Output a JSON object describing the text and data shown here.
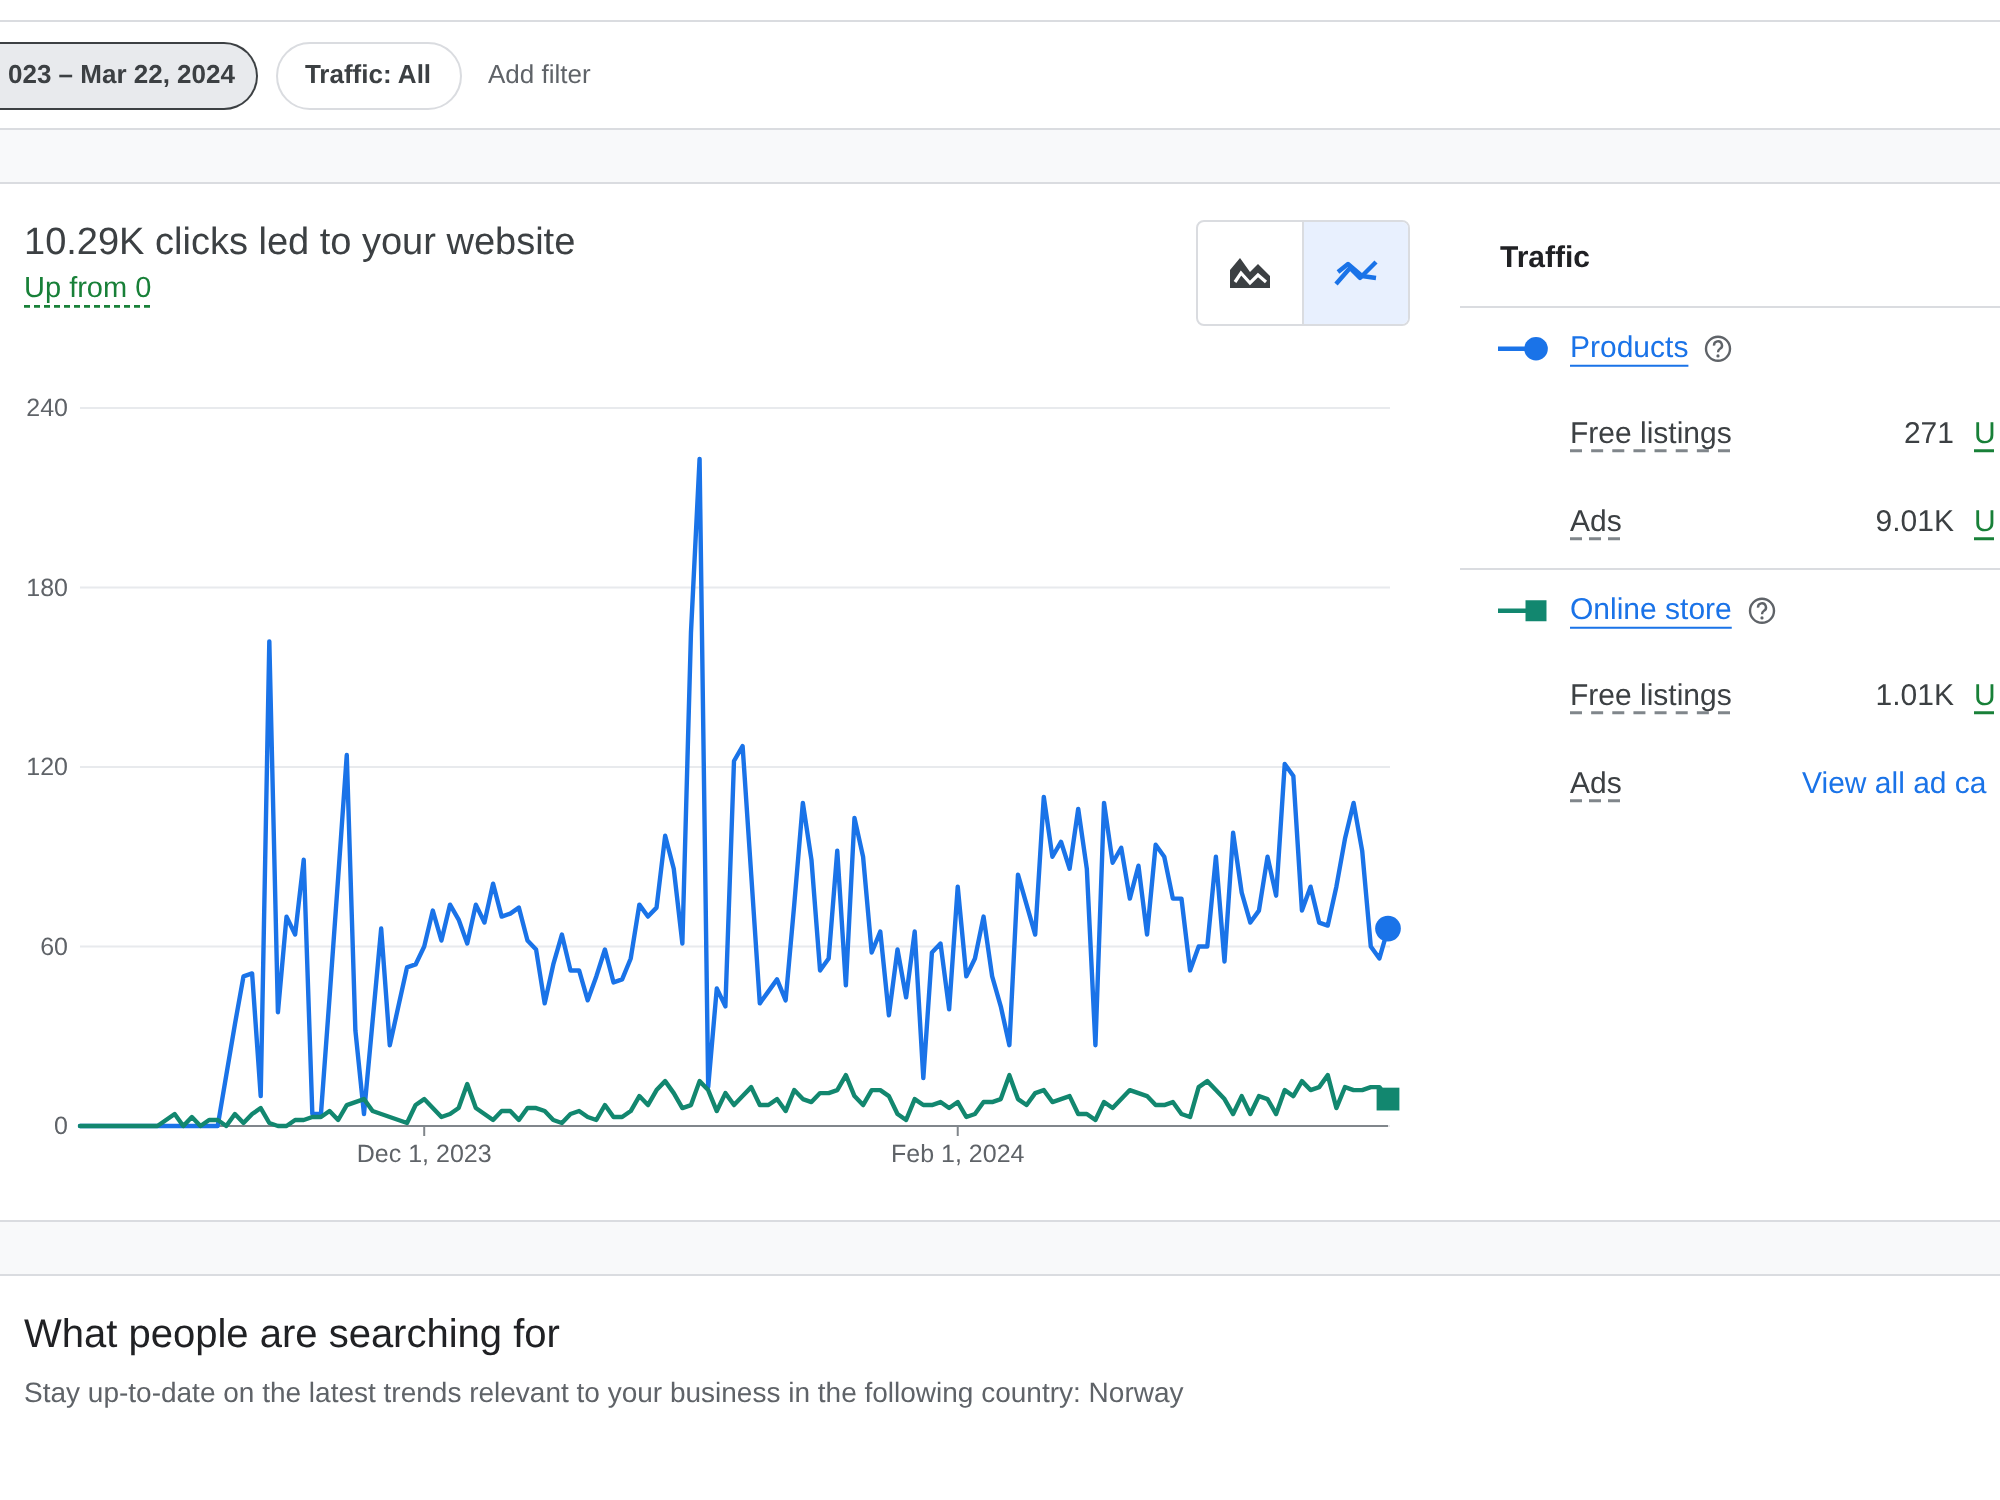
{
  "chart_data": {
    "type": "line",
    "title": "10.29K clicks led to your website",
    "subtitle": "Up from 0",
    "legend_title": "Traffic",
    "legend": "right",
    "grid": "y",
    "xlim": [
      "2023-10-22",
      "2024-03-22"
    ],
    "xticks": [
      {
        "value": "2023-12-01",
        "label": "Dec 1, 2023"
      },
      {
        "value": "2024-02-01",
        "label": "Feb 1, 2024"
      }
    ],
    "ylim": [
      0,
      240
    ],
    "yticks": [
      0,
      60,
      120,
      180,
      240
    ],
    "x": [
      "2023-10-22",
      "2023-10-31",
      "2023-11-01",
      "2023-11-02",
      "2023-11-03",
      "2023-11-04",
      "2023-11-05",
      "2023-11-06",
      "2023-11-07",
      "2023-11-08",
      "2023-11-09",
      "2023-11-10",
      "2023-11-11",
      "2023-11-12",
      "2023-11-13",
      "2023-11-14",
      "2023-11-15",
      "2023-11-16",
      "2023-11-17",
      "2023-11-18",
      "2023-11-19",
      "2023-11-20",
      "2023-11-21",
      "2023-11-22",
      "2023-11-23",
      "2023-11-24",
      "2023-11-25",
      "2023-11-26",
      "2023-11-27",
      "2023-11-28",
      "2023-11-29",
      "2023-11-30",
      "2023-12-01",
      "2023-12-02",
      "2023-12-03",
      "2023-12-04",
      "2023-12-05",
      "2023-12-06",
      "2023-12-07",
      "2023-12-08",
      "2023-12-09",
      "2023-12-10",
      "2023-12-11",
      "2023-12-12",
      "2023-12-13",
      "2023-12-14",
      "2023-12-15",
      "2023-12-16",
      "2023-12-17",
      "2023-12-18",
      "2023-12-19",
      "2023-12-20",
      "2023-12-21",
      "2023-12-22",
      "2023-12-23",
      "2023-12-24",
      "2023-12-25",
      "2023-12-26",
      "2023-12-27",
      "2023-12-28",
      "2023-12-29",
      "2023-12-30",
      "2023-12-31",
      "2024-01-01",
      "2024-01-02",
      "2024-01-03",
      "2024-01-04",
      "2024-01-05",
      "2024-01-06",
      "2024-01-07",
      "2024-01-08",
      "2024-01-09",
      "2024-01-10",
      "2024-01-11",
      "2024-01-12",
      "2024-01-13",
      "2024-01-14",
      "2024-01-15",
      "2024-01-16",
      "2024-01-17",
      "2024-01-18",
      "2024-01-19",
      "2024-01-20",
      "2024-01-21",
      "2024-01-22",
      "2024-01-23",
      "2024-01-24",
      "2024-01-25",
      "2024-01-26",
      "2024-01-27",
      "2024-01-28",
      "2024-01-29",
      "2024-01-30",
      "2024-01-31",
      "2024-02-01",
      "2024-02-02",
      "2024-02-03",
      "2024-02-04",
      "2024-02-05",
      "2024-02-06",
      "2024-02-07",
      "2024-02-08",
      "2024-02-09",
      "2024-02-10",
      "2024-02-11",
      "2024-02-12",
      "2024-02-13",
      "2024-02-14",
      "2024-02-15",
      "2024-02-16",
      "2024-02-17",
      "2024-02-18",
      "2024-02-19",
      "2024-02-20",
      "2024-02-21",
      "2024-02-22",
      "2024-02-23",
      "2024-02-24",
      "2024-02-25",
      "2024-02-26",
      "2024-02-27",
      "2024-02-28",
      "2024-02-29",
      "2024-03-01",
      "2024-03-02",
      "2024-03-03",
      "2024-03-04",
      "2024-03-05",
      "2024-03-06",
      "2024-03-07",
      "2024-03-08",
      "2024-03-09",
      "2024-03-10",
      "2024-03-11",
      "2024-03-12",
      "2024-03-13",
      "2024-03-14",
      "2024-03-15",
      "2024-03-16",
      "2024-03-17",
      "2024-03-18",
      "2024-03-19",
      "2024-03-20",
      "2024-03-21",
      "2024-03-22"
    ],
    "series": [
      {
        "name": "Products",
        "color": "#1a73e8",
        "values": [
          0,
          0,
          0,
          0,
          0,
          0,
          0,
          0,
          0,
          17,
          34,
          50,
          51,
          10,
          162,
          38,
          70,
          64,
          89,
          4,
          4,
          43,
          83,
          124,
          32,
          4,
          35,
          66,
          27,
          40,
          53,
          54,
          60,
          72,
          62,
          74,
          69,
          61,
          74,
          68,
          81,
          70,
          71,
          73,
          62,
          59,
          41,
          54,
          64,
          52,
          52,
          42,
          50,
          59,
          48,
          49,
          56,
          74,
          70,
          73,
          97,
          86,
          61,
          165,
          223,
          13,
          46,
          40,
          122,
          127,
          84,
          41,
          45,
          49,
          42,
          74,
          108,
          89,
          52,
          56,
          92,
          47,
          103,
          90,
          58,
          65,
          37,
          59,
          43,
          65,
          16,
          58,
          61,
          39,
          80,
          50,
          56,
          70,
          50,
          40,
          27,
          84,
          74,
          64,
          110,
          90,
          95,
          86,
          106,
          86,
          27,
          108,
          88,
          93,
          76,
          87,
          64,
          94,
          90,
          76,
          76,
          52,
          60,
          60,
          90,
          55,
          98,
          78,
          68,
          72,
          90,
          77,
          121,
          117,
          72,
          80,
          68,
          67,
          80,
          96,
          108,
          92,
          60,
          56,
          66
        ]
      },
      {
        "name": "Online store",
        "color": "#12876f",
        "values": [
          0,
          0,
          2,
          4,
          0,
          3,
          0,
          2,
          2,
          0,
          4,
          1,
          4,
          6,
          1,
          0,
          0,
          2,
          2,
          3,
          3,
          5,
          2,
          7,
          8,
          9,
          5,
          4,
          3,
          2,
          1,
          7,
          9,
          6,
          3,
          4,
          6,
          14,
          6,
          4,
          2,
          5,
          5,
          2,
          6,
          6,
          5,
          2,
          1,
          4,
          5,
          3,
          2,
          7,
          3,
          3,
          5,
          10,
          7,
          12,
          15,
          11,
          6,
          7,
          15,
          12,
          5,
          11,
          7,
          10,
          13,
          7,
          7,
          9,
          5,
          12,
          9,
          8,
          11,
          11,
          12,
          17,
          10,
          7,
          12,
          12,
          10,
          4,
          2,
          9,
          7,
          7,
          8,
          6,
          8,
          3,
          4,
          8,
          8,
          9,
          17,
          9,
          7,
          11,
          12,
          8,
          9,
          10,
          4,
          4,
          2,
          8,
          6,
          9,
          12,
          11,
          10,
          7,
          7,
          8,
          4,
          3,
          13,
          15,
          12,
          9,
          4,
          10,
          4,
          10,
          9,
          4,
          12,
          10,
          15,
          12,
          13,
          17,
          6,
          13,
          12,
          12,
          13,
          13,
          9
        ]
      },
      {
        "type": "scatter",
        "color": "#1a73e8",
        "marker": "circle",
        "x": [
          "2024-03-22"
        ],
        "values": [
          66
        ]
      },
      {
        "type": "scatter",
        "color": "#12876f",
        "marker": "square",
        "x": [
          "2024-03-22"
        ],
        "values": [
          9
        ]
      }
    ],
    "annotations": [
      "023 – Mar 22, 2024",
      "Traffic: All",
      "Add filter",
      "Free listings",
      "271",
      "U",
      "Ads",
      "9.01K",
      "U",
      "Free listings",
      "1.01K",
      "U",
      "Ads",
      "View all ad ca",
      "What people are searching for",
      "Stay up-to-date on the latest trends relevant to your business in the following country: Norway"
    ]
  }
}
